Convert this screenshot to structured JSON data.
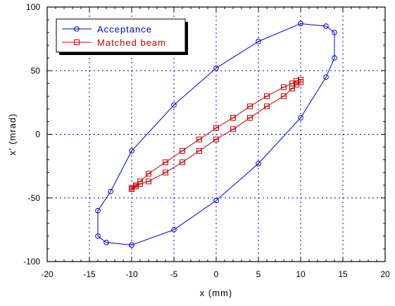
{
  "chart_data": {
    "type": "line",
    "xlabel": "x (mm)",
    "ylabel": "x' (mrad)",
    "xlim": [
      -20,
      20
    ],
    "ylim": [
      -100,
      100
    ],
    "xticks": [
      -20,
      -15,
      -10,
      -5,
      0,
      5,
      10,
      15,
      20
    ],
    "yticks": [
      -100,
      -50,
      0,
      50,
      100
    ],
    "grid": "dotted",
    "legend_position": "top-left",
    "series": [
      {
        "name": "Acceptance",
        "color": "#0000cc",
        "marker": "circle",
        "points": [
          [
            -10,
            -87
          ],
          [
            -13,
            -85
          ],
          [
            -14,
            -80
          ],
          [
            -14,
            -60
          ],
          [
            -12.5,
            -45
          ],
          [
            -10,
            -13
          ],
          [
            -5,
            23
          ],
          [
            0,
            52
          ],
          [
            5,
            73
          ],
          [
            10,
            87
          ],
          [
            13,
            85
          ],
          [
            14,
            80
          ],
          [
            14,
            60
          ],
          [
            13,
            45
          ],
          [
            10,
            13
          ],
          [
            5,
            -23
          ],
          [
            0,
            -52
          ],
          [
            -5,
            -75
          ],
          [
            -10,
            -87
          ]
        ]
      },
      {
        "name": "Matched beam",
        "color": "#cc0000",
        "marker": "square",
        "points": [
          [
            -10,
            -43
          ],
          [
            -9.5,
            -41
          ],
          [
            -9,
            -39
          ],
          [
            -8,
            -37
          ],
          [
            -6,
            -30
          ],
          [
            -4,
            -22
          ],
          [
            -2,
            -13
          ],
          [
            0,
            -4
          ],
          [
            2,
            4
          ],
          [
            4,
            13
          ],
          [
            6,
            22
          ],
          [
            8,
            30
          ],
          [
            9,
            36
          ],
          [
            9.5,
            39
          ],
          [
            10,
            41
          ],
          [
            10,
            43
          ],
          [
            9.5,
            42
          ],
          [
            9,
            40
          ],
          [
            8,
            37
          ],
          [
            6,
            30
          ],
          [
            4,
            22
          ],
          [
            2,
            13
          ],
          [
            0,
            5
          ],
          [
            -2,
            -4
          ],
          [
            -4,
            -13
          ],
          [
            -6,
            -22
          ],
          [
            -8,
            -31
          ],
          [
            -9,
            -37
          ],
          [
            -9.5,
            -40
          ],
          [
            -10,
            -42
          ],
          [
            -10,
            -43
          ]
        ]
      }
    ]
  }
}
